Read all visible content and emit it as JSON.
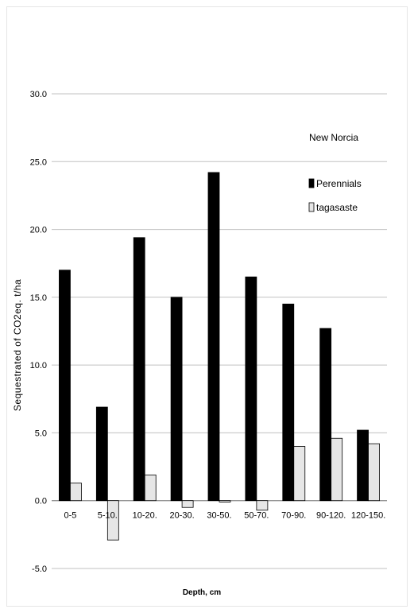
{
  "chart_data": {
    "type": "bar",
    "title": "",
    "annotation": "New Norcia",
    "xlabel": "Depth, cm",
    "ylabel": "Sequestrated of CO2eq. t/ha",
    "ylim": [
      -5,
      30
    ],
    "yticks": [
      "-5.0",
      "0.0",
      "5.0",
      "10.0",
      "15.0",
      "20.0",
      "25.0",
      "30.0"
    ],
    "ytick_values": [
      -5,
      0,
      5,
      10,
      15,
      20,
      25,
      30
    ],
    "grid": true,
    "legend_position": "top-right",
    "categories": [
      "0-5",
      "5-10.",
      "10-20.",
      "20-30.",
      "30-50.",
      "50-70.",
      "70-90.",
      "90-120.",
      "120-150."
    ],
    "series": [
      {
        "name": "Perennials",
        "color": "#000000",
        "values": [
          17.0,
          6.9,
          19.4,
          15.0,
          24.2,
          16.5,
          14.5,
          12.7,
          5.2
        ]
      },
      {
        "name": "tagasaste",
        "color": "#e6e6e6",
        "values": [
          1.3,
          -2.9,
          1.9,
          -0.5,
          -0.1,
          -0.7,
          4.0,
          4.6,
          4.2
        ]
      }
    ]
  }
}
